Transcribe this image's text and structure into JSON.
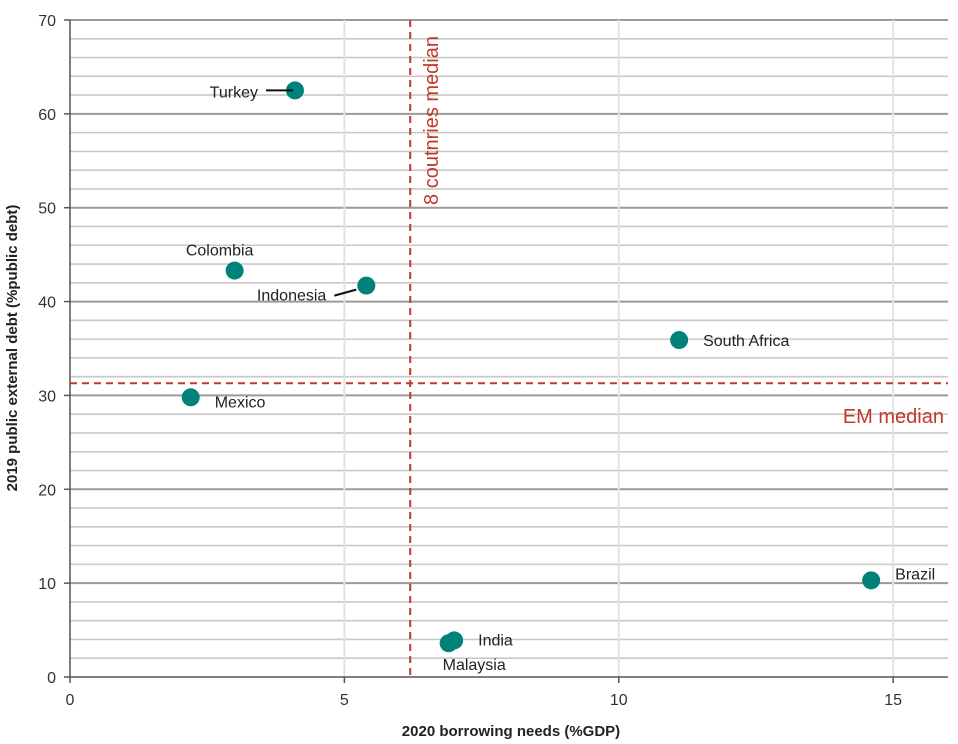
{
  "chart_data": {
    "type": "scatter",
    "xlabel": "2020 borrowing needs (%GDP)",
    "ylabel": "2019 public external debt (%public debt)",
    "xlim": [
      0,
      16
    ],
    "ylim": [
      0,
      70
    ],
    "x_ticks": [
      0,
      5,
      10,
      15
    ],
    "y_ticks": [
      0,
      10,
      20,
      30,
      40,
      50,
      60,
      70
    ],
    "y_minor_step": 2,
    "points": [
      {
        "label": "Turkey",
        "x": 4.1,
        "y": 62.5
      },
      {
        "label": "Colombia",
        "x": 3.0,
        "y": 43.3
      },
      {
        "label": "Indonesia",
        "x": 5.4,
        "y": 41.7
      },
      {
        "label": "Mexico",
        "x": 2.2,
        "y": 29.8
      },
      {
        "label": "South Africa",
        "x": 11.1,
        "y": 35.9
      },
      {
        "label": "Brazil",
        "x": 14.6,
        "y": 10.3
      },
      {
        "label": "India",
        "x": 7.0,
        "y": 3.9
      },
      {
        "label": "Malaysia",
        "x": 6.9,
        "y": 3.6
      }
    ],
    "median_lines": {
      "vertical": {
        "label": "8 coutnries median",
        "x": 6.2
      },
      "horizontal": {
        "label": "EM median",
        "y": 31.3
      }
    },
    "colors": {
      "point": "#00827b",
      "median": "#c0392b",
      "grid_major": "#9a9a9a",
      "grid_minor": "#c8c8c8",
      "axis": "#555555"
    }
  }
}
